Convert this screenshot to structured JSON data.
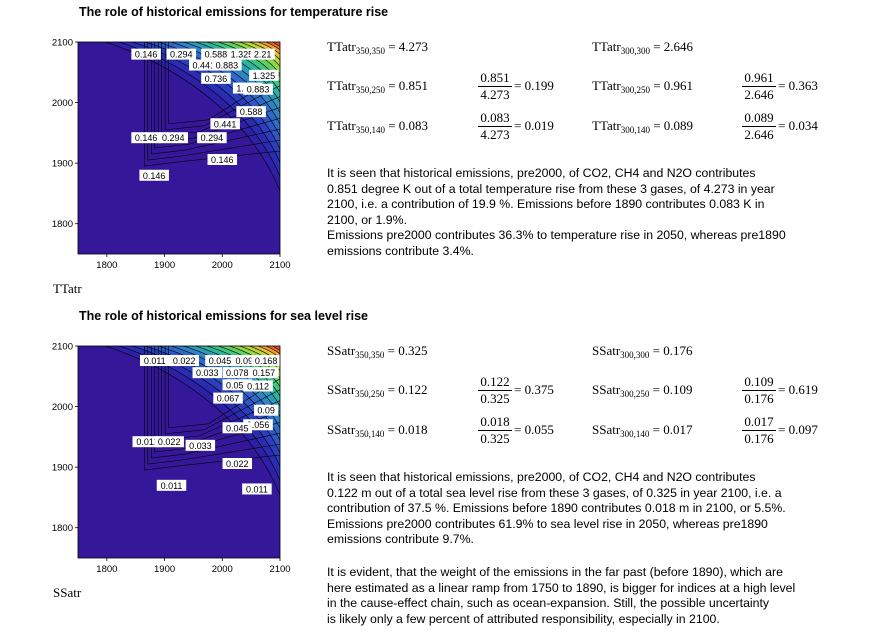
{
  "sections": [
    {
      "title": "The role of historical emissions for temperature rise",
      "var_name": "TTatr",
      "eq_rows": [
        {
          "left_base": "TTatr",
          "left_sub": "350,350",
          "left_val": "= 4.273",
          "right_base": "TTatr",
          "right_sub": "300,300",
          "right_val": "= 2.646"
        },
        {
          "left_base": "TTatr",
          "left_sub": "350,250",
          "left_val": "= 0.851",
          "frac1_num": "0.851",
          "frac1_den": "4.273",
          "frac1_res": "= 0.199",
          "right_base": "TTatr",
          "right_sub": "300,250",
          "right_val": "= 0.961",
          "frac2_num": "0.961",
          "frac2_den": "2.646",
          "frac2_res": "= 0.363"
        },
        {
          "left_base": "TTatr",
          "left_sub": "350,140",
          "left_val": "= 0.083",
          "frac1_num": "0.083",
          "frac1_den": "4.273",
          "frac1_res": "= 0.019",
          "right_base": "TTatr",
          "right_sub": "300,140",
          "right_val": "= 0.089",
          "frac2_num": "0.089",
          "frac2_den": "2.646",
          "frac2_res": "= 0.034"
        }
      ],
      "paragraph": "It is seen that historical emissions, pre2000, of CO2, CH4 and N2O contributes\n0.851 degree K out of a total temperature rise from these 3 gases, of 4.273 in year\n2100, i.e. a contribution of 19.9 %. Emissions before 1890 contributes 0.083 K in\n2100, or 1.9%.\nEmissions pre2000 contributes 36.3% to temperature rise in 2050, whereas pre1890\nemissions contribute 3.4%."
    },
    {
      "title": "The role of historical emissions for sea level rise",
      "var_name": "SSatr",
      "eq_rows": [
        {
          "left_base": "SSatr",
          "left_sub": "350,350",
          "left_val": "= 0.325",
          "right_base": "SSatr",
          "right_sub": "300,300",
          "right_val": "= 0.176"
        },
        {
          "left_base": "SSatr",
          "left_sub": "350,250",
          "left_val": "= 0.122",
          "frac1_num": "0.122",
          "frac1_den": "0.325",
          "frac1_res": "= 0.375",
          "right_base": "SSatr",
          "right_sub": "300,250",
          "right_val": "= 0.109",
          "frac2_num": "0.109",
          "frac2_den": "0.176",
          "frac2_res": "= 0.619"
        },
        {
          "left_base": "SSatr",
          "left_sub": "350,140",
          "left_val": "= 0.018",
          "frac1_num": "0.018",
          "frac1_den": "0.325",
          "frac1_res": "= 0.055",
          "right_base": "SSatr",
          "right_sub": "300,140",
          "right_val": "= 0.017",
          "frac2_num": "0.017",
          "frac2_den": "0.176",
          "frac2_res": "= 0.097"
        }
      ],
      "paragraph": "It is seen that historical emissions, pre2000, of CO2, CH4 and N2O contributes\n0.122 m out of a total sea level rise from these 3 gases, of 0.325 in year 2100, i.e. a\ncontribution of 37.5 %. Emissions before 1890 contributes 0.018 m in 2100, or 5.5%.\nEmissions pre2000 contributes 61.9% to sea level rise in 2050, whereas pre1890\nemissions contribute 9.7%.",
      "paragraph2": "It is evident, that the weight of the emissions in the far past (before 1890), which are\nhere estimated as a linear ramp from 1750 to 1890, is bigger for indices at a high level\nin the cause-effect chain, such as ocean-expansion. Still, the possible uncertainty\nis likely only a few percent of attributed responsibility, especially in 2100."
    }
  ],
  "chart_data": [
    {
      "type": "contour",
      "variable": "TTatr",
      "x_ticks": [
        "1800",
        "1900",
        "2000",
        "2100"
      ],
      "y_ticks": [
        "2100",
        "2000",
        "1900",
        "1800"
      ],
      "xlim": [
        1750,
        2100
      ],
      "ylim": [
        1750,
        2100
      ],
      "contour_labels": [
        {
          "text": "0.146",
          "x": 1868,
          "y": 2080
        },
        {
          "text": "0.294",
          "x": 1929,
          "y": 2080
        },
        {
          "text": "0.588",
          "x": 1989,
          "y": 2080
        },
        {
          "text": "1.325",
          "x": 2034,
          "y": 2080
        },
        {
          "text": "2.21",
          "x": 2070,
          "y": 2080
        },
        {
          "text": "0.441",
          "x": 1968,
          "y": 2062
        },
        {
          "text": "0.883",
          "x": 2008,
          "y": 2062
        },
        {
          "text": "0.736",
          "x": 1989,
          "y": 2040
        },
        {
          "text": "1.325",
          "x": 2072,
          "y": 2045
        },
        {
          "text": "1.473",
          "x": 2044,
          "y": 2024
        },
        {
          "text": "0.883",
          "x": 2062,
          "y": 2022
        },
        {
          "text": "0.588",
          "x": 2050,
          "y": 1985
        },
        {
          "text": "0.441",
          "x": 2005,
          "y": 1965
        },
        {
          "text": "0.294",
          "x": 1982,
          "y": 1942
        },
        {
          "text": "0.146",
          "x": 1868,
          "y": 1942
        },
        {
          "text": "0.294",
          "x": 1915,
          "y": 1942
        },
        {
          "text": "0.146",
          "x": 2000,
          "y": 1906
        },
        {
          "text": "0.146",
          "x": 1882,
          "y": 1880
        }
      ]
    },
    {
      "type": "contour",
      "variable": "SSatr",
      "x_ticks": [
        "1800",
        "1900",
        "2000",
        "2100"
      ],
      "y_ticks": [
        "2100",
        "2000",
        "1900",
        "1800"
      ],
      "xlim": [
        1750,
        2100
      ],
      "ylim": [
        1750,
        2100
      ],
      "contour_labels": [
        {
          "text": "0.011",
          "x": 1883,
          "y": 2076
        },
        {
          "text": "0.022",
          "x": 1934,
          "y": 2076
        },
        {
          "text": "0.045",
          "x": 1996,
          "y": 2076
        },
        {
          "text": "0.09",
          "x": 2038,
          "y": 2076
        },
        {
          "text": "0.168",
          "x": 2076,
          "y": 2076
        },
        {
          "text": "0.033",
          "x": 1974,
          "y": 2056
        },
        {
          "text": "0.078",
          "x": 2026,
          "y": 2056
        },
        {
          "text": "0.157",
          "x": 2072,
          "y": 2056
        },
        {
          "text": "0.056",
          "x": 2026,
          "y": 2036
        },
        {
          "text": "0.112",
          "x": 2062,
          "y": 2034
        },
        {
          "text": "0.067",
          "x": 2010,
          "y": 2014
        },
        {
          "text": "0.09",
          "x": 2076,
          "y": 1994
        },
        {
          "text": "0.056",
          "x": 2062,
          "y": 1970
        },
        {
          "text": "0.045",
          "x": 2026,
          "y": 1965
        },
        {
          "text": "0.011",
          "x": 1870,
          "y": 1942
        },
        {
          "text": "0.022",
          "x": 1908,
          "y": 1942
        },
        {
          "text": "0.033",
          "x": 1962,
          "y": 1936
        },
        {
          "text": "0.022",
          "x": 2026,
          "y": 1906
        },
        {
          "text": "0.011",
          "x": 1912,
          "y": 1870
        },
        {
          "text": "0.011",
          "x": 2060,
          "y": 1864
        }
      ]
    }
  ]
}
